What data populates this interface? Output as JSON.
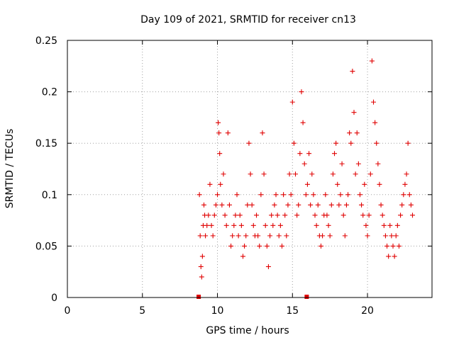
{
  "chart_data": {
    "type": "scatter",
    "title": "Day 109 of 2021, SRMTID for receiver cn13",
    "xlabel": "GPS time / hours",
    "ylabel": "SRMTID / TECUs",
    "xlim": [
      0,
      24.3
    ],
    "ylim": [
      0,
      0.25
    ],
    "x_ticks": [
      0,
      5,
      10,
      15,
      20
    ],
    "x_tick_labels": [
      "0",
      "5",
      "10",
      "15",
      "20"
    ],
    "y_ticks": [
      0,
      0.05,
      0.1,
      0.15,
      0.2,
      0.25
    ],
    "y_tick_labels": [
      "0",
      "0.05",
      "0.1",
      "0.15",
      "0.2",
      "0.25"
    ],
    "grid": true,
    "marker": "+",
    "color": "#e00000",
    "series": [
      {
        "name": "SRMTID",
        "x": [
          8.8,
          8.85,
          8.9,
          8.95,
          9.0,
          9.05,
          9.1,
          9.15,
          9.2,
          9.3,
          9.4,
          9.5,
          9.6,
          9.7,
          9.8,
          9.9,
          10.0,
          10.05,
          10.1,
          10.15,
          10.2,
          10.3,
          10.4,
          10.5,
          10.6,
          10.7,
          10.8,
          10.9,
          11.0,
          11.1,
          11.2,
          11.3,
          11.4,
          11.5,
          11.6,
          11.7,
          11.8,
          11.9,
          12.0,
          12.1,
          12.2,
          12.3,
          12.4,
          12.5,
          12.6,
          12.7,
          12.8,
          12.9,
          13.0,
          13.1,
          13.2,
          13.3,
          13.4,
          13.5,
          13.6,
          13.7,
          13.8,
          13.9,
          14.0,
          14.1,
          14.2,
          14.3,
          14.4,
          14.5,
          14.6,
          14.7,
          14.8,
          14.9,
          15.0,
          15.1,
          15.2,
          15.3,
          15.4,
          15.5,
          15.6,
          15.7,
          15.8,
          15.9,
          16.0,
          16.1,
          16.2,
          16.3,
          16.4,
          16.5,
          16.6,
          16.7,
          16.8,
          16.9,
          17.0,
          17.1,
          17.2,
          17.3,
          17.4,
          17.5,
          17.6,
          17.7,
          17.8,
          17.9,
          18.0,
          18.1,
          18.2,
          18.3,
          18.4,
          18.5,
          18.6,
          18.7,
          18.8,
          18.9,
          19.0,
          19.1,
          19.2,
          19.3,
          19.4,
          19.5,
          19.6,
          19.7,
          19.8,
          19.9,
          20.0,
          20.1,
          20.2,
          20.3,
          20.4,
          20.5,
          20.6,
          20.7,
          20.8,
          20.9,
          21.0,
          21.1,
          21.2,
          21.3,
          21.4,
          21.5,
          21.6,
          21.7,
          21.8,
          21.9,
          22.0,
          22.1,
          22.2,
          22.3,
          22.4,
          22.5,
          22.6,
          22.7,
          22.8,
          22.9,
          23.0
        ],
        "y": [
          0.1,
          0.06,
          0.03,
          0.02,
          0.04,
          0.07,
          0.09,
          0.08,
          0.06,
          0.07,
          0.08,
          0.11,
          0.07,
          0.06,
          0.08,
          0.09,
          0.1,
          0.17,
          0.16,
          0.14,
          0.11,
          0.09,
          0.12,
          0.08,
          0.07,
          0.16,
          0.09,
          0.05,
          0.06,
          0.07,
          0.08,
          0.1,
          0.06,
          0.08,
          0.07,
          0.04,
          0.05,
          0.06,
          0.09,
          0.15,
          0.12,
          0.09,
          0.07,
          0.06,
          0.08,
          0.06,
          0.05,
          0.1,
          0.16,
          0.12,
          0.07,
          0.05,
          0.03,
          0.06,
          0.08,
          0.07,
          0.09,
          0.1,
          0.08,
          0.06,
          0.07,
          0.05,
          0.1,
          0.08,
          0.06,
          0.09,
          0.12,
          0.1,
          0.19,
          0.15,
          0.12,
          0.08,
          0.09,
          0.14,
          0.2,
          0.17,
          0.13,
          0.1,
          0.11,
          0.14,
          0.09,
          0.12,
          0.1,
          0.08,
          0.07,
          0.09,
          0.06,
          0.05,
          0.06,
          0.08,
          0.1,
          0.08,
          0.07,
          0.06,
          0.09,
          0.12,
          0.14,
          0.15,
          0.11,
          0.09,
          0.1,
          0.13,
          0.08,
          0.06,
          0.09,
          0.1,
          0.16,
          0.15,
          0.22,
          0.18,
          0.12,
          0.16,
          0.13,
          0.1,
          0.09,
          0.08,
          0.11,
          0.07,
          0.06,
          0.08,
          0.12,
          0.23,
          0.19,
          0.17,
          0.15,
          0.13,
          0.11,
          0.09,
          0.08,
          0.07,
          0.06,
          0.05,
          0.04,
          0.07,
          0.06,
          0.05,
          0.04,
          0.06,
          0.07,
          0.05,
          0.08,
          0.09,
          0.1,
          0.11,
          0.12,
          0.15,
          0.1,
          0.09,
          0.08
        ]
      }
    ],
    "bottom_markers_x": [
      8.75,
      15.95
    ]
  }
}
